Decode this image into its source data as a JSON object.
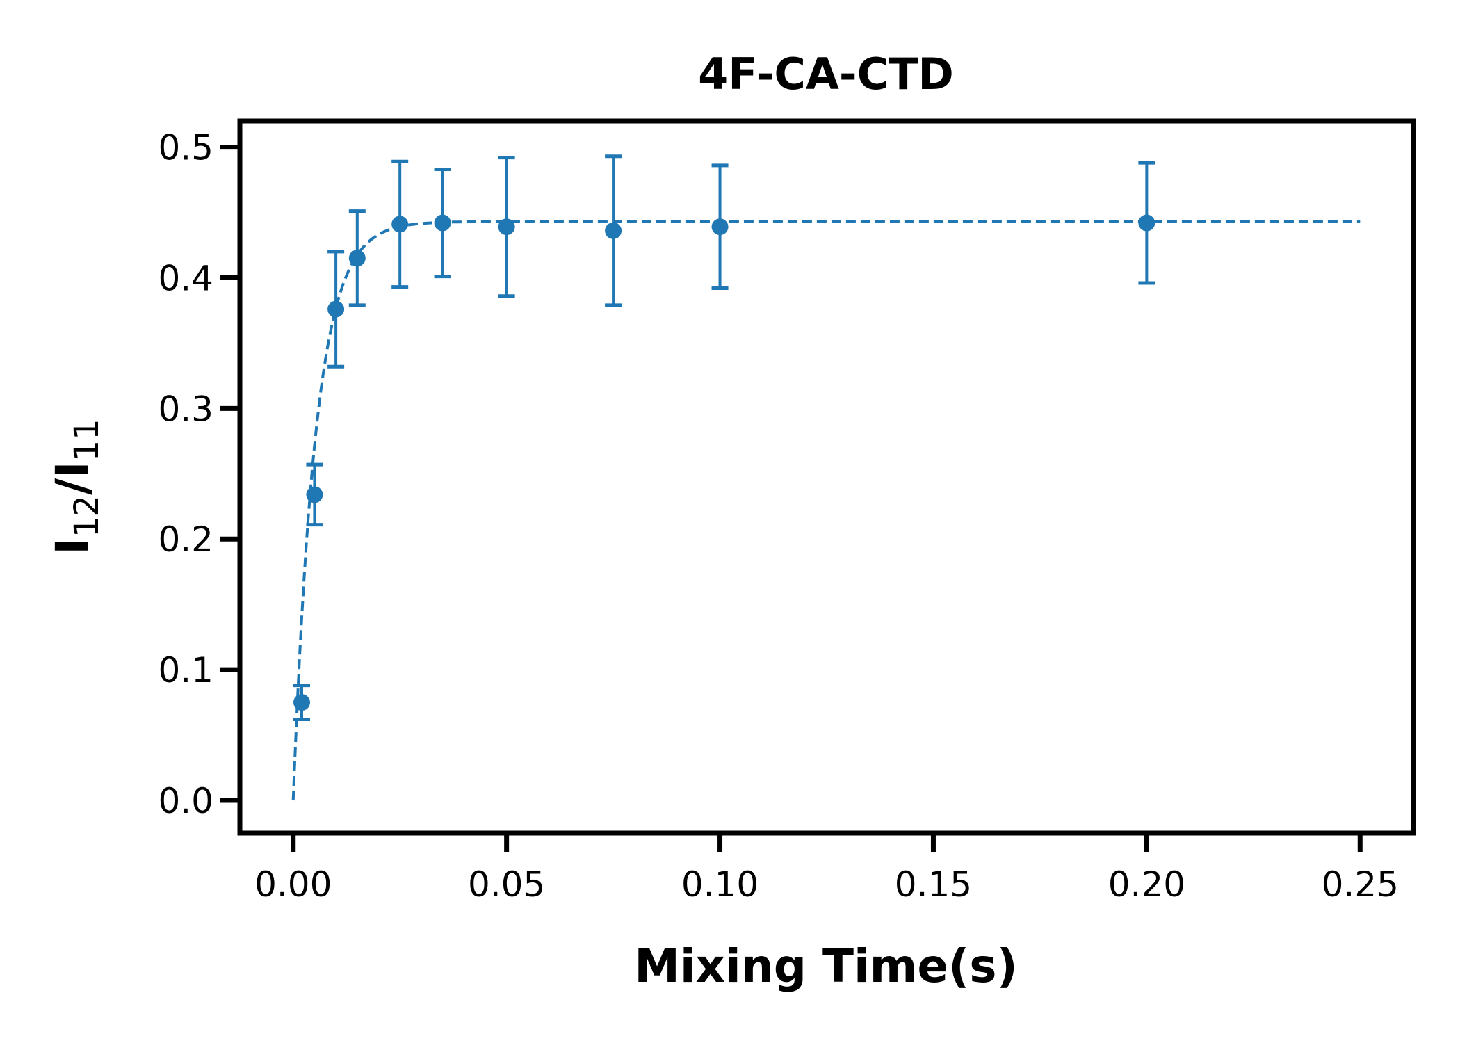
{
  "chart_data": {
    "type": "scatter",
    "title": "4F-CA-CTD",
    "xlabel": "Mixing Time(s)",
    "ylabel": {
      "base": "I",
      "sub1": "12",
      "slash": "/",
      "sub2": "11"
    },
    "xlim": [
      -0.0125,
      0.2625
    ],
    "ylim": [
      -0.025,
      0.52
    ],
    "xticks": [
      0.0,
      0.05,
      0.1,
      0.15,
      0.2,
      0.25
    ],
    "xtick_labels": [
      "0.00",
      "0.05",
      "0.10",
      "0.15",
      "0.20",
      "0.25"
    ],
    "yticks": [
      0.0,
      0.1,
      0.2,
      0.3,
      0.4,
      0.5
    ],
    "ytick_labels": [
      "0.0",
      "0.1",
      "0.2",
      "0.3",
      "0.4",
      "0.5"
    ],
    "grid": false,
    "color": "#1f77b4",
    "series": [
      {
        "x": [
          0.002,
          0.005,
          0.01,
          0.015,
          0.025,
          0.035,
          0.05,
          0.075,
          0.1,
          0.2
        ],
        "y": [
          0.075,
          0.234,
          0.376,
          0.415,
          0.441,
          0.442,
          0.439,
          0.436,
          0.439,
          0.442
        ],
        "yerr": [
          0.013,
          0.023,
          0.044,
          0.036,
          0.048,
          0.041,
          0.053,
          0.057,
          0.047,
          0.046
        ]
      }
    ],
    "fit": {
      "style": "dashed",
      "model": "y = A*(1 - exp(-k*x))",
      "A": 0.443,
      "k": 190,
      "x_range": [
        0.0,
        0.25
      ]
    }
  }
}
